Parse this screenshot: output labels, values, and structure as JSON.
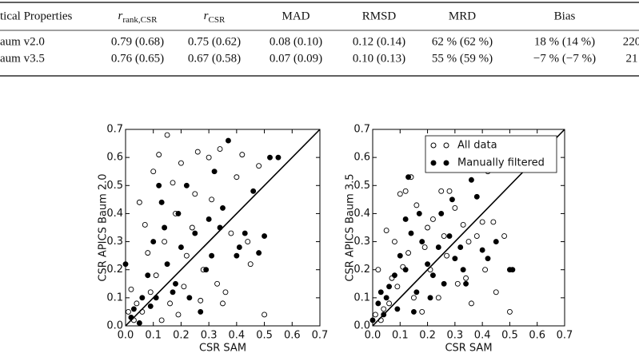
{
  "table": {
    "header": [
      "tical Properties",
      {
        "main": "r",
        "sub": "rank,CSR"
      },
      {
        "main": "r",
        "sub": "CSR"
      },
      "MAD",
      "RMSD",
      "MRD",
      "Bias"
    ],
    "rows": [
      [
        "aum v2.0",
        "0.79 (0.68)",
        "0.75 (0.62)",
        "0.08 (0.10)",
        "0.12 (0.14)",
        "62 % (62 %)",
        "18 % (14 %)",
        "220"
      ],
      [
        "aum v3.5",
        "0.76 (0.65)",
        "0.67 (0.58)",
        "0.07 (0.09)",
        "0.10 (0.13)",
        "55 % (59 %)",
        "−7 % (−7 %)",
        "21"
      ]
    ]
  },
  "chart_data": [
    {
      "type": "scatter",
      "x_label": "CSR SAM",
      "y_label": "CSR APICS Baum 2.0",
      "xlim": [
        0,
        0.7
      ],
      "ylim": [
        0,
        0.7
      ],
      "xticks": [
        {
          "value": 0,
          "label": "0.0"
        },
        {
          "value": 0.1,
          "label": "0.1"
        },
        {
          "value": 0.2,
          "label": "0.2"
        },
        {
          "value": 0.3,
          "label": "0.3"
        },
        {
          "value": 0.4,
          "label": "0.4"
        },
        {
          "value": 0.5,
          "label": "0.5"
        },
        {
          "value": 0.6,
          "label": "0.6"
        },
        {
          "value": 0.7,
          "label": "0.7"
        }
      ],
      "yticks": [
        {
          "value": 0,
          "label": "0.0"
        },
        {
          "value": 0.1,
          "label": "0.1"
        },
        {
          "value": 0.2,
          "label": "0.2"
        },
        {
          "value": 0.3,
          "label": "0.3"
        },
        {
          "value": 0.4,
          "label": "0.4"
        },
        {
          "value": 0.5,
          "label": "0.5"
        },
        {
          "value": 0.6,
          "label": "0.6"
        },
        {
          "value": 0.7,
          "label": "0.7"
        }
      ],
      "series": [
        {
          "color": "#000000",
          "marker": "open",
          "x": [
            0.02,
            0.05,
            0.08,
            0.1,
            0.12,
            0.15,
            0.18,
            0.2,
            0.22,
            0.25,
            0.28,
            0.3,
            0.33,
            0.35,
            0.38,
            0.4,
            0.42,
            0.45,
            0.48,
            0.5,
            0.03,
            0.06,
            0.09,
            0.11,
            0.14,
            0.16,
            0.19,
            0.21,
            0.24,
            0.27,
            0.31,
            0.36,
            0.44,
            0.07,
            0.13,
            0.17,
            0.26,
            0.34,
            0.04,
            0.01
          ],
          "values": [
            0.13,
            0.44,
            0.26,
            0.55,
            0.61,
            0.68,
            0.4,
            0.58,
            0.25,
            0.47,
            0.2,
            0.6,
            0.15,
            0.08,
            0.33,
            0.53,
            0.61,
            0.22,
            0.57,
            0.04,
            0.02,
            0.05,
            0.12,
            0.18,
            0.3,
            0.08,
            0.04,
            0.14,
            0.35,
            0.09,
            0.45,
            0.12,
            0.3,
            0.36,
            0.02,
            0.51,
            0.62,
            0.63,
            0.08,
            0.05
          ]
        },
        {
          "color": "#000000",
          "marker": "filled",
          "x": [
            0.0,
            0.02,
            0.05,
            0.08,
            0.1,
            0.12,
            0.14,
            0.15,
            0.18,
            0.2,
            0.22,
            0.25,
            0.27,
            0.29,
            0.3,
            0.32,
            0.35,
            0.37,
            0.4,
            0.43,
            0.46,
            0.48,
            0.5,
            0.52,
            0.55,
            0.06,
            0.09,
            0.11,
            0.17,
            0.23,
            0.31,
            0.34,
            0.41,
            0.13,
            0.19,
            0.03
          ],
          "values": [
            0.22,
            0.03,
            0.01,
            0.18,
            0.3,
            0.5,
            0.35,
            0.22,
            0.15,
            0.28,
            0.5,
            0.33,
            0.05,
            0.2,
            0.38,
            0.55,
            0.42,
            0.66,
            0.25,
            0.33,
            0.48,
            0.26,
            0.32,
            0.6,
            0.6,
            0.1,
            0.07,
            0.1,
            0.12,
            0.1,
            0.25,
            0.35,
            0.28,
            0.44,
            0.4,
            0.06
          ]
        }
      ]
    },
    {
      "type": "scatter",
      "x_label": "CSR SAM",
      "y_label": "CSR APICS Baum 3.5",
      "xlim": [
        0,
        0.7
      ],
      "ylim": [
        0,
        0.7
      ],
      "legend": "upper right",
      "xticks": [
        {
          "value": 0,
          "label": "0.0"
        },
        {
          "value": 0.1,
          "label": "0.1"
        },
        {
          "value": 0.2,
          "label": "0.2"
        },
        {
          "value": 0.3,
          "label": "0.3"
        },
        {
          "value": 0.4,
          "label": "0.4"
        },
        {
          "value": 0.5,
          "label": "0.5"
        },
        {
          "value": 0.6,
          "label": "0.6"
        },
        {
          "value": 0.7,
          "label": "0.7"
        }
      ],
      "yticks": [
        {
          "value": 0,
          "label": "0.0"
        },
        {
          "value": 0.1,
          "label": "0.1"
        },
        {
          "value": 0.2,
          "label": "0.2"
        },
        {
          "value": 0.3,
          "label": "0.3"
        },
        {
          "value": 0.4,
          "label": "0.4"
        },
        {
          "value": 0.5,
          "label": "0.5"
        },
        {
          "value": 0.6,
          "label": "0.6"
        },
        {
          "value": 0.7,
          "label": "0.7"
        }
      ],
      "series": [
        {
          "name": "All data",
          "color": "#000000",
          "marker": "open",
          "x": [
            0.02,
            0.05,
            0.08,
            0.1,
            0.12,
            0.14,
            0.16,
            0.2,
            0.22,
            0.25,
            0.28,
            0.3,
            0.33,
            0.35,
            0.38,
            0.4,
            0.42,
            0.44,
            0.48,
            0.5,
            0.03,
            0.06,
            0.09,
            0.11,
            0.15,
            0.18,
            0.21,
            0.24,
            0.27,
            0.31,
            0.36,
            0.41,
            0.45,
            0.04,
            0.13,
            0.19,
            0.26,
            0.34,
            0.01,
            0.07
          ],
          "values": [
            0.2,
            0.34,
            0.3,
            0.47,
            0.48,
            0.53,
            0.43,
            0.35,
            0.38,
            0.48,
            0.48,
            0.42,
            0.36,
            0.3,
            0.32,
            0.37,
            0.55,
            0.37,
            0.32,
            0.05,
            0.02,
            0.08,
            0.14,
            0.21,
            0.1,
            0.05,
            0.2,
            0.1,
            0.25,
            0.15,
            0.08,
            0.2,
            0.12,
            0.06,
            0.26,
            0.28,
            0.32,
            0.17,
            0.04,
            0.17
          ]
        },
        {
          "name": "Manually filtered",
          "color": "#000000",
          "marker": "filled",
          "x": [
            0.0,
            0.02,
            0.04,
            0.06,
            0.08,
            0.1,
            0.12,
            0.14,
            0.16,
            0.18,
            0.2,
            0.22,
            0.24,
            0.26,
            0.28,
            0.3,
            0.32,
            0.34,
            0.36,
            0.38,
            0.4,
            0.42,
            0.45,
            0.5,
            0.51,
            0.12,
            0.15,
            0.17,
            0.21,
            0.25,
            0.29,
            0.33,
            0.05,
            0.09,
            0.03,
            0.13
          ],
          "values": [
            0.02,
            0.08,
            0.04,
            0.14,
            0.18,
            0.25,
            0.2,
            0.33,
            0.12,
            0.3,
            0.22,
            0.18,
            0.28,
            0.15,
            0.32,
            0.24,
            0.28,
            0.15,
            0.52,
            0.46,
            0.27,
            0.24,
            0.3,
            0.2,
            0.2,
            0.38,
            0.05,
            0.4,
            0.1,
            0.4,
            0.45,
            0.2,
            0.1,
            0.06,
            0.12,
            0.53
          ]
        }
      ]
    }
  ]
}
